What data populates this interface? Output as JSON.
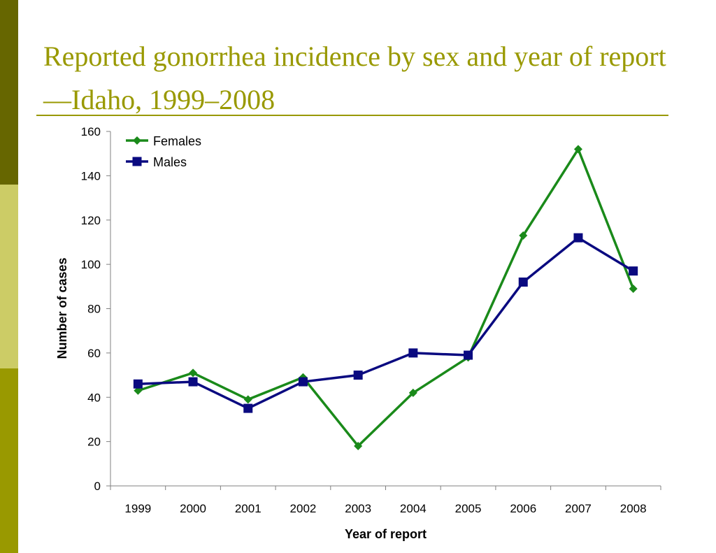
{
  "slide": {
    "title": "Reported gonorrhea incidence by sex and year of report—Idaho, 1999–2008"
  },
  "colors": {
    "title": "#999900",
    "sidebar_dark": "#666600",
    "sidebar_light": "#cccc66",
    "sidebar_mid": "#999900",
    "females": "#1a8a1a",
    "males": "#0a0a80"
  },
  "chart_data": {
    "type": "line",
    "x": [
      "1999",
      "2000",
      "2001",
      "2002",
      "2003",
      "2004",
      "2005",
      "2006",
      "2007",
      "2008"
    ],
    "series": [
      {
        "name": "Females",
        "values": [
          43,
          51,
          39,
          49,
          18,
          42,
          58,
          113,
          152,
          89
        ],
        "marker": "diamond",
        "color": "#1a8a1a"
      },
      {
        "name": "Males",
        "values": [
          46,
          47,
          35,
          47,
          50,
          60,
          59,
          92,
          112,
          97
        ],
        "marker": "square",
        "color": "#0a0a80"
      }
    ],
    "xlabel": "Year of report",
    "ylabel": "Number of cases",
    "ylim": [
      0,
      160
    ],
    "yticks": [
      0,
      20,
      40,
      60,
      80,
      100,
      120,
      140,
      160
    ],
    "grid": false,
    "legend": "top-left"
  }
}
